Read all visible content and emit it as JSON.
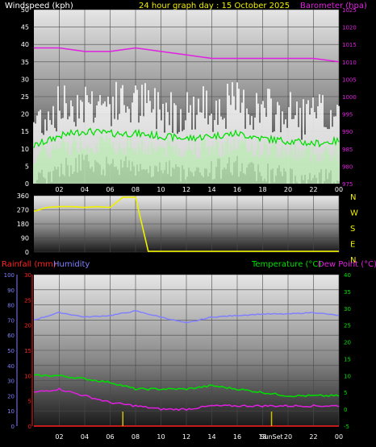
{
  "header": {
    "left": "Windspeed (kph)",
    "center": "24 hour graph day : 15 October 2025",
    "right": "Barometer (hpa)"
  },
  "colors": {
    "wind_gust": "#ffffff",
    "wind_speed": "#c8f5c0",
    "wind_avg": "#00e000",
    "barometer": "#e020e0",
    "direction": "#f0f000",
    "rain": "#ff2020",
    "humidity": "#8080ff",
    "temperature": "#00e000",
    "dewpoint": "#e020e0",
    "sun_marker": "#d0c000"
  },
  "x_ticks": [
    "02",
    "04",
    "06",
    "08",
    "10",
    "12",
    "14",
    "16",
    "18",
    "20",
    "22",
    "00"
  ],
  "chart_data": [
    {
      "type": "area",
      "title": "",
      "xlabel": "",
      "ylabel": "Windspeed (kph)",
      "y2label": "Barometer (hpa)",
      "ylim": [
        0,
        50
      ],
      "y2lim": [
        975,
        1025
      ],
      "yticks": [
        0,
        5,
        10,
        15,
        20,
        25,
        30,
        35,
        40,
        45,
        50
      ],
      "y2ticks": [
        975,
        980,
        985,
        990,
        995,
        1000,
        1005,
        1010,
        1015,
        1020,
        1025
      ],
      "x": [
        0,
        2,
        4,
        6,
        8,
        10,
        12,
        14,
        16,
        18,
        20,
        22,
        24
      ],
      "series": [
        {
          "name": "Windspeed (kph)",
          "values": [
            15,
            19,
            21,
            20,
            20,
            19,
            18,
            19,
            20,
            18,
            17,
            16,
            17
          ]
        },
        {
          "name": "Barometer (hpa)",
          "values": [
            1014,
            1014,
            1013,
            1013,
            1014,
            1013,
            1012,
            1011,
            1011,
            1011,
            1011,
            1011,
            1010
          ]
        }
      ],
      "grid": true
    },
    {
      "type": "line",
      "title": "",
      "ylim": [
        0,
        360
      ],
      "yticks": [
        0,
        90,
        180,
        270,
        360
      ],
      "direction_labels": [
        "N",
        "W",
        "S",
        "E",
        "N"
      ],
      "x": [
        0,
        1,
        2,
        3,
        4,
        5,
        6,
        7,
        7.5,
        8,
        9,
        10,
        12,
        14,
        16,
        18,
        20,
        22,
        24
      ],
      "series": [
        {
          "name": "Wind direction",
          "values": [
            260,
            285,
            290,
            290,
            285,
            290,
            285,
            350,
            350,
            350,
            5,
            5,
            5,
            5,
            5,
            5,
            5,
            5,
            5
          ]
        }
      ],
      "grid": true
    },
    {
      "type": "line",
      "title": "",
      "ylabel": "Rainfall (mm)",
      "y2label": "Humidity",
      "y3label": "Temperature (°C)",
      "y4label": "Dew Point (°C)",
      "rain_ticks": [
        0,
        5,
        10,
        15,
        20,
        25,
        30
      ],
      "humidity_ticks": [
        0,
        10,
        20,
        30,
        40,
        50,
        60,
        70,
        80,
        90,
        100
      ],
      "temp_ticks": [
        -5,
        0,
        5,
        10,
        15,
        20,
        25,
        30,
        35,
        40
      ],
      "x": [
        0,
        2,
        4,
        6,
        8,
        10,
        12,
        14,
        16,
        18,
        20,
        22,
        24
      ],
      "series": [
        {
          "name": "Rainfall (mm)",
          "values": [
            0,
            0,
            0,
            0,
            0,
            0,
            0,
            0,
            0,
            0,
            0,
            0,
            0
          ]
        },
        {
          "name": "Humidity",
          "values": [
            70,
            75,
            72,
            73,
            76,
            72,
            68,
            72,
            73,
            74,
            74,
            75,
            73
          ]
        },
        {
          "name": "Temperature (°C)",
          "values": [
            10,
            10,
            9,
            8,
            6,
            6,
            6,
            7,
            6,
            5,
            4,
            4,
            4
          ]
        },
        {
          "name": "Dew Point (°C)",
          "values": [
            5,
            6,
            4,
            2,
            1,
            0,
            0,
            1,
            1,
            1,
            1,
            1,
            1
          ]
        }
      ],
      "sun_labels": [
        "Sun",
        "Set"
      ],
      "grid": true
    }
  ]
}
